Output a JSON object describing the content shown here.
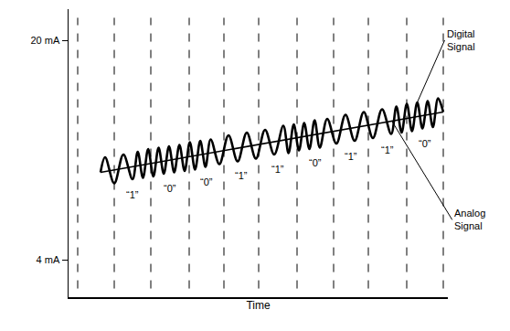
{
  "chart_data": {
    "type": "line",
    "x_title": "Time",
    "xlim": [
      0,
      415
    ],
    "xticks": [],
    "ylim": [
      1.3,
      22.3
    ],
    "yticks": [
      {
        "value": 4,
        "label": "4 mA"
      },
      {
        "value": 20,
        "label": "20 mA"
      }
    ],
    "tick_labels": "y",
    "grid": false,
    "series": [
      {
        "name": "Digital Signal",
        "color": "#000000",
        "line_style": "solid",
        "x": [
          35,
          40,
          50,
          60,
          70,
          75.7,
          81.4,
          87.1,
          92.8,
          98.5,
          104.2,
          109.9,
          115.6,
          121.3,
          127,
          132.7,
          138.4,
          144.1,
          149.8,
          155.5,
          165,
          175,
          185,
          195,
          205,
          215,
          225,
          235,
          240.7,
          246.4,
          252.1,
          257.8,
          263.5,
          269.2,
          274.9,
          283,
          293,
          303,
          313,
          323,
          333,
          343,
          353,
          358.7,
          364.4,
          370.1,
          375.8,
          381.5,
          387.2,
          392.9,
          398.6,
          404.3,
          410
        ],
        "values": [
          10.4,
          11.5,
          9.6,
          11.7,
          9.9,
          11.9,
          10.0,
          12.1,
          10.1,
          12.2,
          10.3,
          12.3,
          10.4,
          12.4,
          10.5,
          12.6,
          10.6,
          12.7,
          10.8,
          12.8,
          11.0,
          13.1,
          11.2,
          13.3,
          11.4,
          13.5,
          11.7,
          13.8,
          11.8,
          13.9,
          12.0,
          14.0,
          12.1,
          14.2,
          12.2,
          14.3,
          12.5,
          14.6,
          12.7,
          14.8,
          12.9,
          15.0,
          13.2,
          15.2,
          13.3,
          15.4,
          13.4,
          15.5,
          13.6,
          15.6,
          13.7,
          15.8,
          14.8
        ]
      },
      {
        "name": "Analog Signal",
        "color": "#000000",
        "line_style": "solid",
        "x": [
          35,
          410
        ],
        "values": [
          10.4,
          14.8
        ]
      }
    ],
    "bit_boundaries": [
      10,
      50,
      90,
      132,
      170,
      208,
      250,
      290,
      328,
      370,
      410
    ],
    "bits": [
      "“1”",
      "“0”",
      "“0”",
      "“1”",
      "“1”",
      "“0”",
      "“1”",
      "“1”",
      "“0”"
    ]
  }
}
